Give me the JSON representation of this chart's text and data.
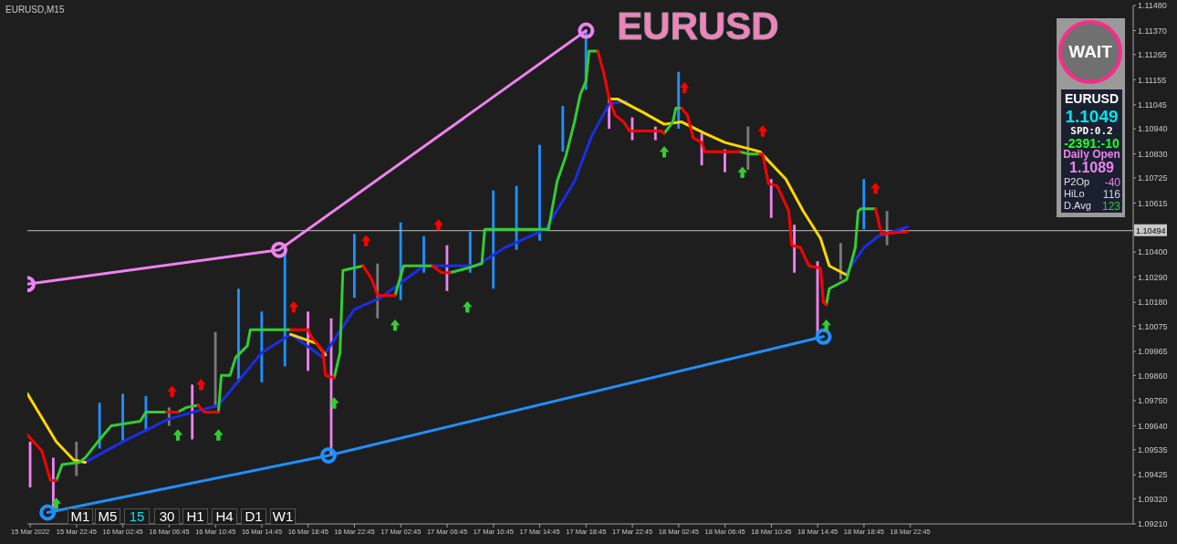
{
  "chart_data": {
    "type": "bar",
    "title": "EURUSD",
    "subtitle": "EURUSD,M15",
    "xlim": [
      "2022-03-15T18:30",
      "2022-03-19T18:00"
    ],
    "xticks": [
      {
        "value": "2022-03-15T18:45",
        "label": "15 Mar 2022"
      },
      {
        "value": "2022-03-15T22:45",
        "label": "15 Mar 22:45"
      },
      {
        "value": "2022-03-16T02:45",
        "label": "16 Mar 02:45"
      },
      {
        "value": "2022-03-16T06:45",
        "label": "16 Mar 06:45"
      },
      {
        "value": "2022-03-16T10:45",
        "label": "16 Mar 10:45"
      },
      {
        "value": "2022-03-16T14:45",
        "label": "16 Mar 14:45"
      },
      {
        "value": "2022-03-16T18:45",
        "label": "16 Mar 18:45"
      },
      {
        "value": "2022-03-16T22:45",
        "label": "16 Mar 22:45"
      },
      {
        "value": "2022-03-17T02:45",
        "label": "17 Mar 02:45"
      },
      {
        "value": "2022-03-17T06:45",
        "label": "17 Mar 06:45"
      },
      {
        "value": "2022-03-17T10:45",
        "label": "17 Mar 10:45"
      },
      {
        "value": "2022-03-17T14:45",
        "label": "17 Mar 14:45"
      },
      {
        "value": "2022-03-17T18:45",
        "label": "17 Mar 18:45"
      },
      {
        "value": "2022-03-17T22:45",
        "label": "17 Mar 22:45"
      },
      {
        "value": "2022-03-18T02:45",
        "label": "18 Mar 02:45"
      },
      {
        "value": "2022-03-18T06:45",
        "label": "18 Mar 06:45"
      },
      {
        "value": "2022-03-18T10:45",
        "label": "18 Mar 10:45"
      },
      {
        "value": "2022-03-18T14:45",
        "label": "18 Mar 14:45"
      },
      {
        "value": "2022-03-18T18:45",
        "label": "18 Mar 18:45"
      },
      {
        "value": "2022-03-18T22:45",
        "label": "18 Mar 22:45"
      }
    ],
    "ylim": [
      1.0921,
      1.1148
    ],
    "yticks": [
      {
        "value": 1.1148,
        "label": "1.11480"
      },
      {
        "value": 1.1137,
        "label": "1.11370"
      },
      1.11265,
      1.11155,
      1.11045,
      {
        "value": 1.1094,
        "label": "1.10940"
      },
      {
        "value": 1.1083,
        "label": "1.10830"
      },
      1.10725,
      1.10615,
      {
        "value": 1.104,
        "label": "1.10400"
      },
      {
        "value": 1.1029,
        "label": "1.10290"
      },
      {
        "value": 1.1018,
        "label": "1.10180"
      },
      1.10075,
      1.09965,
      {
        "value": 1.0986,
        "label": "1.09860"
      },
      {
        "value": 1.0975,
        "label": "1.09750"
      },
      {
        "value": 1.0964,
        "label": "1.09640"
      },
      1.09535,
      1.09425,
      {
        "value": 1.0932,
        "label": "1.09320"
      },
      {
        "value": 1.0921,
        "label": "1.09210"
      }
    ],
    "ref_lines": [
      {
        "axis": "y",
        "value": 1.10494,
        "label": "1.10494",
        "color": "#c0c0c0"
      }
    ],
    "series": [
      {
        "x": [
          "2022-03-15T18:45",
          "2022-03-15T20:45",
          "2022-03-15T22:45",
          "2022-03-16T00:45",
          "2022-03-16T02:45",
          "2022-03-16T04:45",
          "2022-03-16T06:45",
          "2022-03-16T08:45",
          "2022-03-16T10:45",
          "2022-03-16T12:45",
          "2022-03-16T14:45",
          "2022-03-16T16:45",
          "2022-03-16T18:45",
          "2022-03-16T20:45",
          "2022-03-16T22:45",
          "2022-03-17T00:45",
          "2022-03-17T02:45",
          "2022-03-17T04:45",
          "2022-03-17T06:45",
          "2022-03-17T08:45",
          "2022-03-17T10:45",
          "2022-03-17T12:45",
          "2022-03-17T14:45",
          "2022-03-17T16:45",
          "2022-03-17T18:45",
          "2022-03-17T20:45",
          "2022-03-17T22:45",
          "2022-03-18T00:45",
          "2022-03-18T02:45",
          "2022-03-18T04:45",
          "2022-03-18T06:45",
          "2022-03-18T08:45",
          "2022-03-18T10:45",
          "2022-03-18T12:45",
          "2022-03-18T14:45",
          "2022-03-18T16:45",
          "2022-03-18T18:45",
          "2022-03-18T20:45"
        ],
        "base": [
          1.0937,
          1.0928,
          1.0942,
          1.0954,
          1.0957,
          1.0962,
          1.0964,
          1.0958,
          1.0972,
          1.0983,
          1.0983,
          1.099,
          1.0988,
          1.0951,
          1.102,
          1.1011,
          1.1019,
          1.1031,
          1.1023,
          1.1031,
          1.1024,
          1.1041,
          1.1045,
          1.1084,
          1.1111,
          1.1094,
          1.1089,
          1.1089,
          1.1094,
          1.1078,
          1.1075,
          1.1076,
          1.1055,
          1.1031,
          1.1003,
          1.1028,
          1.105,
          1.1043
        ],
        "values": [
          0.002,
          0.0022,
          0.0015,
          0.002,
          0.0021,
          0.0015,
          0.0008,
          0.0024,
          0.0033,
          0.0041,
          0.0031,
          0.005,
          0.0026,
          0.006,
          0.0028,
          0.0024,
          0.0034,
          0.0016,
          0.002,
          0.0018,
          0.0043,
          0.0028,
          0.0042,
          0.002,
          0.0026,
          0.0013,
          0.001,
          0.0006,
          0.0025,
          0.0014,
          0.001,
          0.0019,
          0.0017,
          0.0021,
          0.0033,
          0.0016,
          0.0022,
          0.0015
        ],
        "colors": [
          "#ee82ee",
          "#ee82ee",
          "#7a7a7a",
          "#1e90ff",
          "#1e90ff",
          "#1e90ff",
          "#7a7a7a",
          "#ee82ee",
          "#7a7a7a",
          "#1e90ff",
          "#1e90ff",
          "#1e90ff",
          "#ee82ee",
          "#ee82ee",
          "#1e90ff",
          "#7a7a7a",
          "#1e90ff",
          "#1e90ff",
          "#ee82ee",
          "#1e90ff",
          "#1e90ff",
          "#1e90ff",
          "#1e90ff",
          "#1e90ff",
          "#1e90ff",
          "#ee82ee",
          "#ee82ee",
          "#ee82ee",
          "#1e90ff",
          "#ee82ee",
          "#ee82ee",
          "#7a7a7a",
          "#ee82ee",
          "#ee82ee",
          "#ee82ee",
          "#7a7a7a",
          "#1e90ff",
          "#7a7a7a"
        ]
      },
      {
        "type": "line",
        "color": "#1a2ee6",
        "x": [
          "2022-03-15T23:30",
          "2022-03-16T02:45",
          "2022-03-16T06:45",
          "2022-03-16T11:00",
          "2022-03-16T14:45",
          "2022-03-16T17:15",
          "2022-03-16T20:00",
          "2022-03-16T22:45",
          "2022-03-17T01:00",
          "2022-03-17T04:45",
          "2022-03-17T09:15",
          "2022-03-17T11:45",
          "2022-03-17T15:15",
          "2022-03-17T17:45",
          "2022-03-17T19:15",
          "2022-03-17T20:45",
          "2022-03-17T22:15",
          "2022-03-17T22:30",
          "2022-03-18T17:15",
          "2022-03-18T18:45",
          "2022-03-18T20:00",
          "2022-03-18T22:30"
        ],
        "values": [
          1.0948,
          1.0957,
          1.0967,
          1.0973,
          1.0996,
          1.1004,
          1.0994,
          1.1015,
          1.102,
          1.1034,
          1.1034,
          1.1042,
          1.105,
          1.1071,
          1.1091,
          1.1105,
          1.1106,
          null,
          1.1031,
          1.1042,
          1.1047,
          1.1051
        ]
      },
      {
        "type": "line",
        "color": "#ffd700",
        "x": [
          "2022-03-15T18:30",
          "2022-03-15T21:00",
          "2022-03-15T22:30",
          "2022-03-15T23:30",
          "2022-03-15T23:45",
          "2022-03-16T17:15",
          "2022-03-16T19:30",
          "2022-03-16T20:15",
          "2022-03-16T20:30",
          "2022-03-17T20:45",
          "2022-03-17T21:30",
          "2022-03-17T23:45",
          "2022-03-18T01:30",
          "2022-03-18T03:00",
          "2022-03-18T05:00",
          "2022-03-18T06:45",
          "2022-03-18T08:15",
          "2022-03-18T09:45",
          "2022-03-18T12:00",
          "2022-03-18T13:30",
          "2022-03-18T15:00",
          "2022-03-18T15:45",
          "2022-03-18T17:15"
        ],
        "values": [
          1.0978,
          1.0957,
          1.0949,
          1.0948,
          null,
          1.1004,
          1.1,
          1.0995,
          null,
          1.1107,
          1.1107,
          1.1101,
          1.1096,
          1.1097,
          1.1092,
          1.1088,
          1.1086,
          1.1084,
          1.1072,
          1.1058,
          1.1046,
          1.1034,
          1.103
        ]
      },
      {
        "type": "line",
        "color": "#32cd32",
        "x": [
          "2022-03-15T21:00",
          "2022-03-15T21:30",
          "2022-03-15T23:00",
          "2022-03-15T23:30",
          "2022-03-16T00:45",
          "2022-03-16T01:45",
          "2022-03-16T04:15",
          "2022-03-16T04:45",
          "2022-03-16T06:30",
          "2022-03-16T06:45",
          "2022-03-16T07:30",
          "2022-03-16T08:15",
          "2022-03-16T09:15",
          "2022-03-16T09:30",
          "2022-03-16T11:00",
          "2022-03-16T11:15",
          "2022-03-16T12:00",
          "2022-03-16T12:30",
          "2022-03-16T13:30",
          "2022-03-16T13:45",
          "2022-03-16T17:15",
          "2022-03-16T17:30",
          "2022-03-16T21:00",
          "2022-03-16T21:30",
          "2022-03-16T21:45",
          "2022-03-16T23:30",
          "2022-03-16T23:45",
          "2022-03-17T02:15",
          "2022-03-17T03:00",
          "2022-03-17T05:30",
          "2022-03-17T05:45",
          "2022-03-17T07:00",
          "2022-03-17T08:30",
          "2022-03-17T09:45",
          "2022-03-17T10:00",
          "2022-03-17T15:30",
          "2022-03-17T16:15",
          "2022-03-17T17:00",
          "2022-03-17T17:45",
          "2022-03-17T18:15",
          "2022-03-17T18:45",
          "2022-03-17T19:00",
          "2022-03-17T19:45",
          "2022-03-17T20:00",
          "2022-03-18T01:30",
          "2022-03-18T02:15",
          "2022-03-18T02:30",
          "2022-03-18T03:00",
          "2022-03-18T03:15",
          "2022-03-18T08:00",
          "2022-03-18T08:45",
          "2022-03-18T09:45",
          "2022-03-18T10:00",
          "2022-03-18T15:30",
          "2022-03-18T15:45",
          "2022-03-18T16:30",
          "2022-03-18T17:15",
          "2022-03-18T18:00",
          "2022-03-18T18:15",
          "2022-03-18T18:30",
          "2022-03-18T19:45"
        ],
        "values": [
          1.094,
          1.0947,
          1.0948,
          1.095,
          1.0958,
          1.0964,
          1.0966,
          1.097,
          1.097,
          null,
          1.097,
          1.0972,
          1.0973,
          null,
          1.097,
          1.0986,
          1.0986,
          1.0994,
          1.0999,
          1.1006,
          1.1006,
          null,
          1.0985,
          1.0996,
          1.1032,
          1.1034,
          null,
          1.1021,
          1.1034,
          1.1034,
          null,
          1.1031,
          1.1033,
          1.1035,
          1.105,
          1.105,
          1.1071,
          1.1082,
          1.1097,
          1.1109,
          1.1115,
          1.1128,
          1.1128,
          null,
          1.1092,
          1.1097,
          1.1103,
          1.1103,
          null,
          1.1084,
          1.1083,
          1.1083,
          null,
          1.1017,
          1.1024,
          1.1026,
          1.1028,
          1.1042,
          1.1058,
          1.1059,
          1.1059
        ]
      },
      {
        "type": "line",
        "color": "#ff0000",
        "x": [
          "2022-03-15T18:30",
          "2022-03-15T19:45",
          "2022-03-15T20:30",
          "2022-03-15T21:00",
          "2022-03-15T21:15",
          "2022-03-16T06:30",
          "2022-03-16T07:30",
          "2022-03-16T07:45",
          "2022-03-16T09:15",
          "2022-03-16T09:45",
          "2022-03-16T10:45",
          "2022-03-16T11:00",
          "2022-03-16T11:15",
          "2022-03-16T17:15",
          "2022-03-16T18:45",
          "2022-03-16T19:00",
          "2022-03-16T20:00",
          "2022-03-16T20:15",
          "2022-03-16T21:00",
          "2022-03-16T21:15",
          "2022-03-16T23:30",
          "2022-03-17T00:15",
          "2022-03-17T00:45",
          "2022-03-17T02:15",
          "2022-03-17T02:30",
          "2022-03-17T05:30",
          "2022-03-17T06:15",
          "2022-03-17T07:00",
          "2022-03-17T07:15",
          "2022-03-17T19:45",
          "2022-03-17T20:15",
          "2022-03-17T20:45",
          "2022-03-17T21:15",
          "2022-03-17T22:00",
          "2022-03-17T22:30",
          "2022-03-18T01:15",
          "2022-03-18T01:30",
          "2022-03-18T01:45",
          "2022-03-18T03:00",
          "2022-03-18T03:30",
          "2022-03-18T04:00",
          "2022-03-18T04:45",
          "2022-03-18T05:00",
          "2022-03-18T08:00",
          "2022-03-18T08:15",
          "2022-03-18T09:45",
          "2022-03-18T10:00",
          "2022-03-18T10:30",
          "2022-03-18T11:15",
          "2022-03-18T12:15",
          "2022-03-18T12:30",
          "2022-03-18T13:15",
          "2022-03-18T14:00",
          "2022-03-18T15:00",
          "2022-03-18T15:15",
          "2022-03-18T15:30",
          "2022-03-18T15:45",
          "2022-03-18T19:45",
          "2022-03-18T20:15",
          "2022-03-18T22:30"
        ],
        "values": [
          1.096,
          1.0953,
          1.094,
          1.094,
          null,
          1.097,
          1.097,
          null,
          1.0973,
          1.097,
          1.097,
          1.097,
          null,
          1.1006,
          1.1006,
          1.1003,
          1.0997,
          1.0986,
          1.0985,
          null,
          1.1034,
          1.1028,
          1.1021,
          1.1021,
          null,
          1.1034,
          1.1031,
          1.1031,
          null,
          1.1128,
          1.1119,
          1.1107,
          1.11,
          1.1097,
          1.1093,
          1.1093,
          1.1092,
          null,
          1.1103,
          1.11,
          1.109,
          1.1088,
          1.1084,
          1.1084,
          null,
          1.1083,
          1.1083,
          1.107,
          1.1069,
          1.1058,
          1.1043,
          1.1042,
          1.1034,
          1.1033,
          1.1018,
          1.1017,
          null,
          1.1059,
          1.1048,
          1.1049
        ]
      },
      {
        "type": "line",
        "color": "#ee82ee",
        "marker": "circle",
        "x": [
          "2022-03-15T18:30",
          "2022-03-16T16:15",
          "2022-03-17T18:45"
        ],
        "values": [
          1.1026,
          1.1041,
          1.1137
        ]
      },
      {
        "type": "line",
        "color": "#1e90ff",
        "marker": "circle",
        "x": [
          "2022-03-15T20:15",
          "2022-03-16T20:30",
          "2022-03-18T15:15"
        ],
        "values": [
          1.0926,
          1.0951,
          1.1003
        ]
      },
      {
        "type": "scatter",
        "color": "#32cd32",
        "marker": "triangle",
        "x": [
          "2022-03-15T21:00",
          "2022-03-16T07:30",
          "2022-03-16T11:00",
          "2022-03-16T21:00",
          "2022-03-17T02:15",
          "2022-03-17T08:30",
          "2022-03-18T01:30",
          "2022-03-18T08:15",
          "2022-03-18T15:30"
        ],
        "values": [
          1.093,
          1.096,
          1.096,
          1.0974,
          1.1008,
          1.1016,
          1.1084,
          1.1075,
          1.1008
        ]
      },
      {
        "type": "scatter",
        "color": "#ff0000",
        "marker": "triangle",
        "x": [
          "2022-03-16T07:00",
          "2022-03-16T09:30",
          "2022-03-16T17:30",
          "2022-03-16T23:45",
          "2022-03-17T06:00",
          "2022-03-18T03:15",
          "2022-03-18T10:00",
          "2022-03-18T19:45"
        ],
        "values": [
          1.0979,
          1.0982,
          1.1016,
          1.1045,
          1.1052,
          1.1112,
          1.1093,
          1.1068
        ]
      }
    ],
    "annotations": [
      "M1",
      "M5",
      "15",
      "30",
      "H1",
      "H4",
      "D1",
      "W1",
      "WAIT",
      "EURUSD",
      "1.1049",
      "SPD:0.2",
      "-2391:-10",
      "Daily Open",
      "1.1089",
      "P2Op",
      "-40",
      "HiLo",
      "116",
      "D.Avg",
      "123"
    ]
  }
}
